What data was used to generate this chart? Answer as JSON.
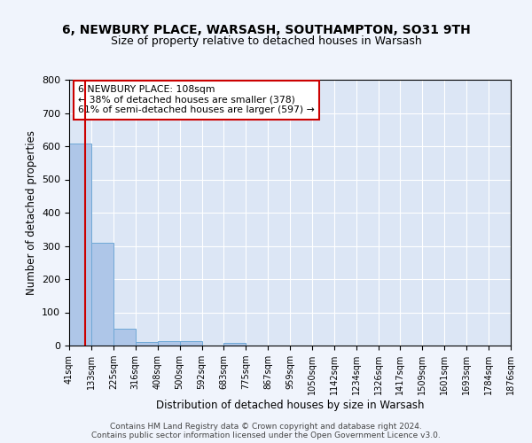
{
  "title1": "6, NEWBURY PLACE, WARSASH, SOUTHAMPTON, SO31 9TH",
  "title2": "Size of property relative to detached houses in Warsash",
  "xlabel": "Distribution of detached houses by size in Warsash",
  "ylabel": "Number of detached properties",
  "bin_edges": [
    41,
    133,
    225,
    316,
    408,
    500,
    592,
    683,
    775,
    867,
    959,
    1050,
    1142,
    1234,
    1326,
    1417,
    1509,
    1601,
    1693,
    1784,
    1876
  ],
  "bar_heights": [
    607,
    310,
    50,
    10,
    13,
    13,
    0,
    8,
    0,
    0,
    0,
    0,
    0,
    0,
    0,
    0,
    0,
    0,
    0,
    0
  ],
  "bar_color": "#aec6e8",
  "bar_edge_color": "#6fa8d6",
  "property_size": 108,
  "property_label": "6 NEWBURY PLACE: 108sqm",
  "annotation_line1": "← 38% of detached houses are smaller (378)",
  "annotation_line2": "61% of semi-detached houses are larger (597) →",
  "vline_color": "#cc0000",
  "annotation_box_color": "#ffffff",
  "annotation_box_edge": "#cc0000",
  "background_color": "#dce6f5",
  "grid_color": "#ffffff",
  "fig_background": "#f0f4fc",
  "ylim": [
    0,
    800
  ],
  "yticks": [
    0,
    100,
    200,
    300,
    400,
    500,
    600,
    700,
    800
  ],
  "footer1": "Contains HM Land Registry data © Crown copyright and database right 2024.",
  "footer2": "Contains public sector information licensed under the Open Government Licence v3.0."
}
